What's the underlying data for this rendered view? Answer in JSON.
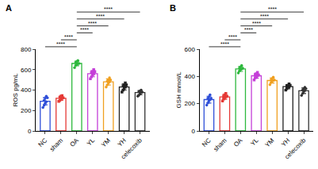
{
  "chart_data": [
    {
      "type": "bar",
      "title": "A",
      "y_label": "ROS pg/mL",
      "categories": [
        "NC",
        "sham",
        "OA",
        "YL",
        "YM",
        "YH",
        "celecoxib"
      ],
      "values": [
        290,
        320,
        660,
        560,
        480,
        430,
        375
      ],
      "errors": [
        35,
        20,
        22,
        30,
        30,
        30,
        20
      ],
      "points": [
        [
          230,
          250,
          270,
          285,
          300,
          320,
          340,
          325
        ],
        [
          290,
          300,
          310,
          320,
          330,
          340,
          345,
          325
        ],
        [
          620,
          640,
          650,
          660,
          670,
          680,
          690,
          660
        ],
        [
          510,
          530,
          550,
          560,
          570,
          580,
          600,
          580
        ],
        [
          430,
          450,
          470,
          480,
          490,
          500,
          520,
          500
        ],
        [
          380,
          400,
          420,
          430,
          440,
          450,
          470,
          450
        ],
        [
          340,
          350,
          365,
          375,
          385,
          390,
          400,
          380
        ]
      ],
      "colors": [
        "#2f4fd8",
        "#e53935",
        "#2db83d",
        "#c43fd8",
        "#f0a020",
        "#222222",
        "#333333"
      ],
      "ylim": [
        0,
        800
      ],
      "yticks": [
        0,
        200,
        400,
        600,
        800
      ],
      "grid": false,
      "comparisons": [
        {
          "groups": [
            "NC",
            "OA"
          ],
          "label": "****"
        },
        {
          "groups": [
            "sham",
            "OA"
          ],
          "label": "****"
        },
        {
          "groups": [
            "OA",
            "YL"
          ],
          "label": "****"
        },
        {
          "groups": [
            "OA",
            "YM"
          ],
          "label": "****"
        },
        {
          "groups": [
            "OA",
            "YH"
          ],
          "label": "****"
        },
        {
          "groups": [
            "OA",
            "celecoxib"
          ],
          "label": "****"
        }
      ]
    },
    {
      "type": "bar",
      "title": "B",
      "y_label": "GSH mmol/L",
      "categories": [
        "NC",
        "sham",
        "OA",
        "YL",
        "YM",
        "YH",
        "celecoxib"
      ],
      "values": [
        230,
        250,
        455,
        405,
        370,
        325,
        295
      ],
      "errors": [
        25,
        18,
        18,
        18,
        18,
        15,
        20
      ],
      "points": [
        [
          190,
          205,
          220,
          230,
          240,
          250,
          265,
          240
        ],
        [
          220,
          235,
          245,
          250,
          255,
          265,
          275,
          255
        ],
        [
          425,
          440,
          450,
          455,
          460,
          470,
          480,
          460
        ],
        [
          375,
          390,
          400,
          405,
          410,
          420,
          430,
          410
        ],
        [
          340,
          355,
          365,
          370,
          375,
          385,
          395,
          375
        ],
        [
          300,
          310,
          320,
          325,
          330,
          335,
          345,
          335
        ],
        [
          260,
          275,
          290,
          295,
          300,
          310,
          320,
          310
        ]
      ],
      "colors": [
        "#2f4fd8",
        "#e53935",
        "#2db83d",
        "#c43fd8",
        "#f0a020",
        "#222222",
        "#333333"
      ],
      "ylim": [
        0,
        600
      ],
      "yticks": [
        0,
        200,
        400,
        600
      ],
      "grid": false,
      "comparisons": [
        {
          "groups": [
            "NC",
            "OA"
          ],
          "label": "****"
        },
        {
          "groups": [
            "sham",
            "OA"
          ],
          "label": "****"
        },
        {
          "groups": [
            "OA",
            "YL"
          ],
          "label": "****"
        },
        {
          "groups": [
            "OA",
            "YM"
          ],
          "label": "****"
        },
        {
          "groups": [
            "OA",
            "YH"
          ],
          "label": "****"
        },
        {
          "groups": [
            "OA",
            "celecoxib"
          ],
          "label": "****"
        }
      ]
    }
  ]
}
